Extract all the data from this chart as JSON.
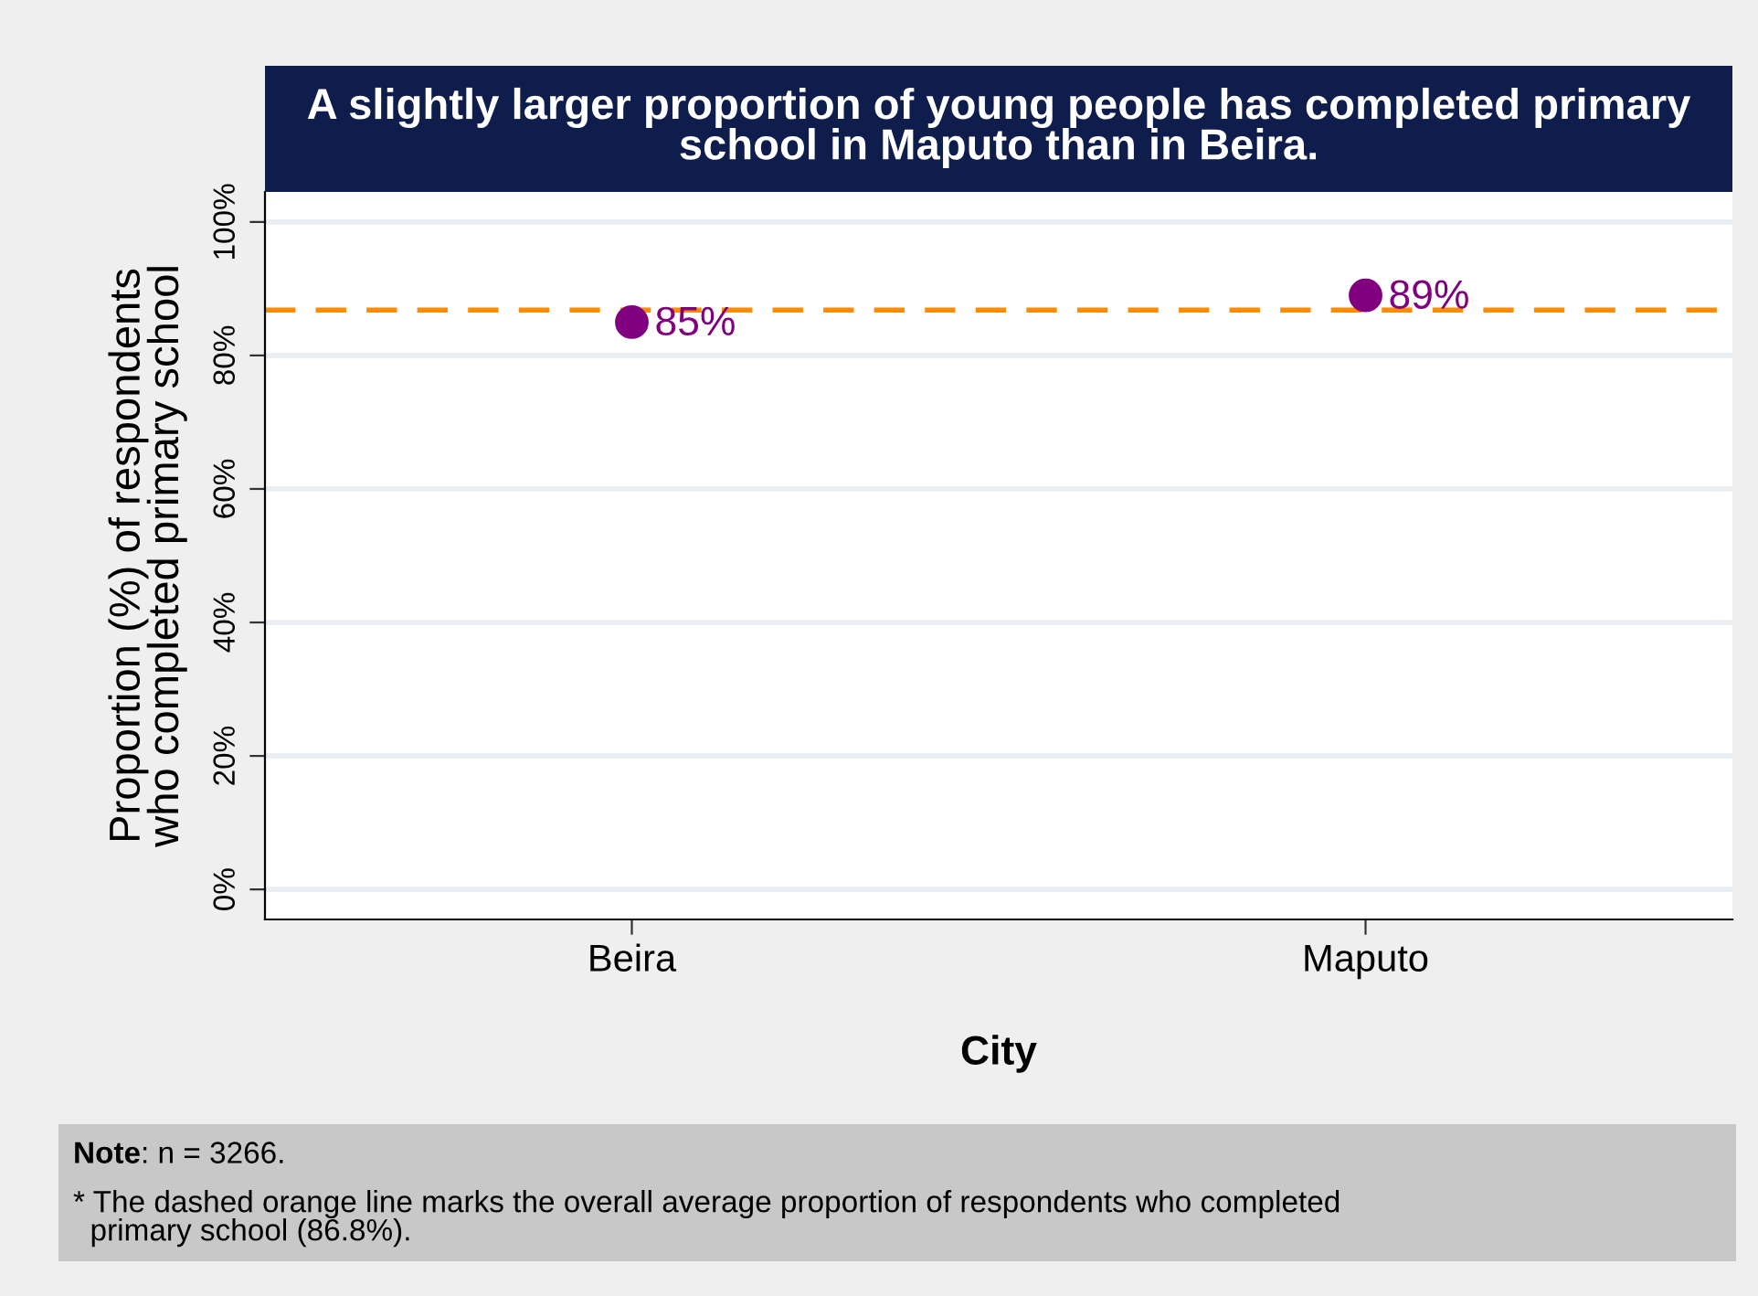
{
  "chart_data": {
    "type": "scatter",
    "title": "A slightly larger proportion of young people has completed primary school in Maputo than in Beira.",
    "xlabel": "City",
    "ylabel": "Proportion (%) of respondents\nwho completed primary school",
    "categories": [
      "Beira",
      "Maputo"
    ],
    "series": [
      {
        "color": "#800080",
        "values": [
          85,
          89
        ],
        "value_labels": [
          "85%",
          "89%"
        ]
      }
    ],
    "marker": "circle",
    "ylim": [
      -4.5,
      104.5
    ],
    "yticks": [
      {
        "value": 0,
        "label": "0%"
      },
      {
        "value": 20,
        "label": "20%"
      },
      {
        "value": 40,
        "label": "40%"
      },
      {
        "value": 60,
        "label": "60%"
      },
      {
        "value": 80,
        "label": "80%"
      },
      {
        "value": 100,
        "label": "100%"
      }
    ],
    "grid": "y",
    "legend": false,
    "ref_lines": [
      {
        "axis": "y",
        "value": 86.8,
        "color": "#ff8c00",
        "line_style": "dashed"
      }
    ],
    "annotations": [
      "Note: n = 3266.",
      "* The dashed orange line marks the overall average proportion of respondents who completed\n  primary school (86.8%)."
    ]
  }
}
